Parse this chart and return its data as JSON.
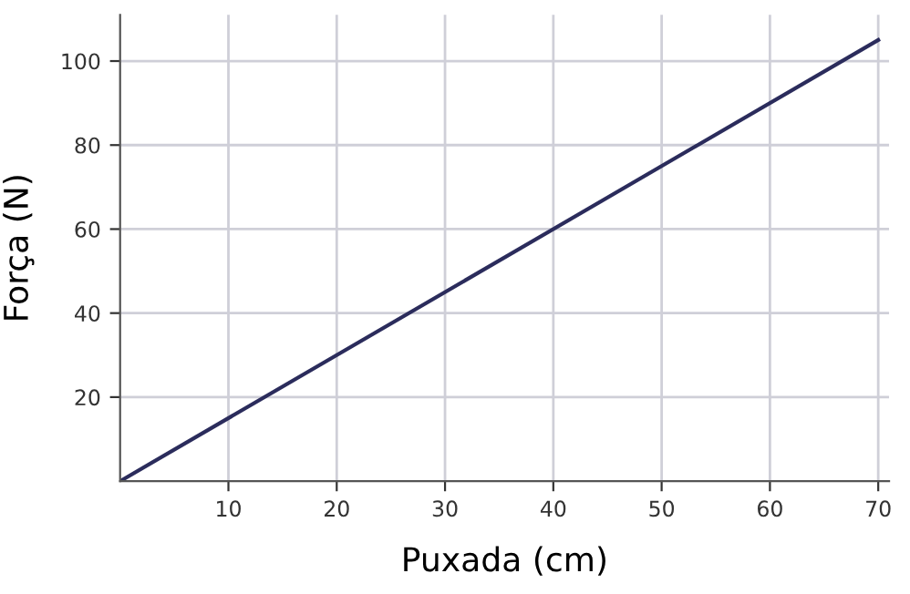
{
  "chart_data": {
    "type": "line",
    "xlabel": "Puxada (cm)",
    "ylabel": "Força (N)",
    "x": [
      0,
      70
    ],
    "series": [
      {
        "color": "#2b2c5c",
        "values": [
          0,
          105
        ]
      }
    ],
    "xlim": [
      0,
      71
    ],
    "ylim": [
      0,
      111
    ],
    "xticks": [
      10,
      20,
      30,
      40,
      50,
      60,
      70
    ],
    "yticks": [
      20,
      40,
      60,
      80,
      100
    ],
    "grid": true,
    "marker": "none",
    "line_style": "solid"
  }
}
